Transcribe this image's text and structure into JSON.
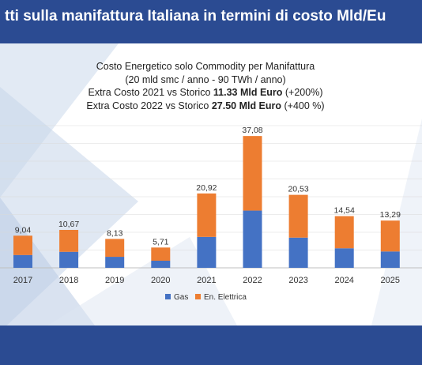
{
  "header": {
    "title": "tti   sulla manifattura Italiana in termini di costo Mld/Eu"
  },
  "chart_title": {
    "line1": "Costo Energetico solo Commodity per Manifattura",
    "line2": "(20 mld smc / anno - 90 TWh / anno)",
    "line3_prefix": "Extra Costo 2021 vs Storico ",
    "line3_bold": "11.33 Mld Euro",
    "line3_suffix": " (+200%)",
    "line4_prefix": "Extra Costo 2022 vs Storico ",
    "line4_bold": "27.50 Mld Euro",
    "line4_suffix": " (+400 %)"
  },
  "colors": {
    "header_bg": "#2b4b92",
    "gas": "#4472c4",
    "elettrica": "#ed7d31",
    "gridline": "#d9d9d9"
  },
  "chart_data": {
    "type": "bar",
    "stacked": true,
    "categories": [
      "2017",
      "2018",
      "2019",
      "2020",
      "2021",
      "2022",
      "2023",
      "2024",
      "2025"
    ],
    "series": [
      {
        "name": "Gas",
        "values": [
          3.6,
          4.5,
          3.1,
          2.0,
          8.7,
          16.1,
          8.5,
          5.5,
          4.6
        ]
      },
      {
        "name": "En. Elettrica",
        "values": [
          5.44,
          6.17,
          5.03,
          3.71,
          12.22,
          20.98,
          12.03,
          9.04,
          8.69
        ]
      }
    ],
    "totals": [
      "9,04",
      "10,67",
      "8,13",
      "5,71",
      "20,92",
      "37,08",
      "20,53",
      "14,54",
      "13,29"
    ],
    "ylim": [
      0,
      40
    ],
    "grid": true,
    "legend_position": "bottom"
  }
}
